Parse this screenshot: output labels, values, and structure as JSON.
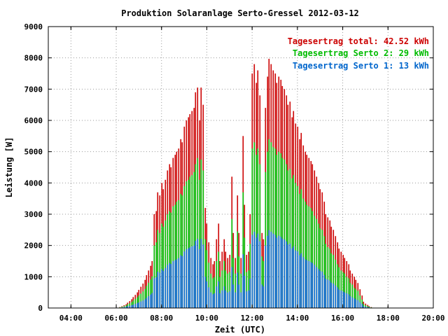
{
  "chart_data": {
    "type": "bar",
    "title": "Produktion Solaranlage Serto-Gressel 2012-03-12",
    "xlabel": "Zeit (UTC)",
    "ylabel": "Leistung [W]",
    "ylim": [
      0,
      9000
    ],
    "xlim": [
      "03:00",
      "20:00"
    ],
    "grid": true,
    "legend_position": "top-right",
    "x_ticks": [
      "04:00",
      "06:00",
      "08:00",
      "10:00",
      "12:00",
      "14:00",
      "16:00",
      "18:00",
      "20:00"
    ],
    "y_ticks": [
      "0",
      "1000",
      "2000",
      "3000",
      "4000",
      "5000",
      "6000",
      "7000",
      "8000",
      "9000"
    ],
    "interval_minutes": 5,
    "x": [
      "06:10",
      "06:15",
      "06:20",
      "06:25",
      "06:30",
      "06:35",
      "06:40",
      "06:45",
      "06:50",
      "06:55",
      "07:00",
      "07:05",
      "07:10",
      "07:15",
      "07:20",
      "07:25",
      "07:30",
      "07:35",
      "07:40",
      "07:45",
      "07:50",
      "07:55",
      "08:00",
      "08:05",
      "08:10",
      "08:15",
      "08:20",
      "08:25",
      "08:30",
      "08:35",
      "08:40",
      "08:45",
      "08:50",
      "08:55",
      "09:00",
      "09:05",
      "09:10",
      "09:15",
      "09:20",
      "09:25",
      "09:30",
      "09:35",
      "09:40",
      "09:45",
      "09:50",
      "09:55",
      "10:00",
      "10:05",
      "10:10",
      "10:15",
      "10:20",
      "10:25",
      "10:30",
      "10:35",
      "10:40",
      "10:45",
      "10:50",
      "10:55",
      "11:00",
      "11:05",
      "11:10",
      "11:15",
      "11:20",
      "11:25",
      "11:30",
      "11:35",
      "11:40",
      "11:45",
      "11:50",
      "11:55",
      "12:00",
      "12:05",
      "12:10",
      "12:15",
      "12:20",
      "12:25",
      "12:30",
      "12:35",
      "12:40",
      "12:45",
      "12:50",
      "12:55",
      "13:00",
      "13:05",
      "13:10",
      "13:15",
      "13:20",
      "13:25",
      "13:30",
      "13:35",
      "13:40",
      "13:45",
      "13:50",
      "13:55",
      "14:00",
      "14:05",
      "14:10",
      "14:15",
      "14:20",
      "14:25",
      "14:30",
      "14:35",
      "14:40",
      "14:45",
      "14:50",
      "14:55",
      "15:00",
      "15:05",
      "15:10",
      "15:15",
      "15:20",
      "15:25",
      "15:30",
      "15:35",
      "15:40",
      "15:45",
      "15:50",
      "15:55",
      "16:00",
      "16:05",
      "16:10",
      "16:15",
      "16:20",
      "16:25",
      "16:30",
      "16:35",
      "16:40",
      "16:45",
      "16:50",
      "16:55",
      "17:00",
      "17:05",
      "17:10",
      "17:15"
    ],
    "series": [
      {
        "name": "Tagesertrag total: 42.52 kWh",
        "color": "#cc0000",
        "values": [
          30,
          60,
          90,
          120,
          170,
          220,
          280,
          350,
          420,
          500,
          580,
          680,
          780,
          900,
          1050,
          1200,
          1350,
          1500,
          3000,
          3100,
          3700,
          3600,
          4000,
          3800,
          4100,
          4400,
          4600,
          4500,
          4800,
          4900,
          5000,
          5100,
          5400,
          5300,
          5800,
          6000,
          6100,
          6200,
          6300,
          6400,
          6900,
          7050,
          6000,
          7050,
          6500,
          3200,
          2700,
          2100,
          1600,
          1400,
          1500,
          2200,
          2700,
          1500,
          1800,
          2200,
          1800,
          1600,
          1700,
          4200,
          2400,
          1600,
          3600,
          2400,
          1600,
          5500,
          3300,
          1700,
          1800,
          3000,
          7500,
          7800,
          7200,
          7600,
          6800,
          2400,
          2200,
          6400,
          7400,
          7970,
          7800,
          7600,
          7500,
          7200,
          7400,
          7300,
          7100,
          7000,
          6800,
          6500,
          6600,
          6100,
          6300,
          5900,
          5800,
          5400,
          5600,
          5200,
          5000,
          4900,
          4800,
          4700,
          4600,
          4400,
          4200,
          4000,
          3800,
          3700,
          3400,
          3000,
          2900,
          2800,
          2600,
          2500,
          2300,
          2100,
          1900,
          1800,
          1700,
          1600,
          1500,
          1400,
          1200,
          1100,
          1000,
          900,
          800,
          600,
          400,
          200,
          140,
          100,
          60,
          30
        ]
      },
      {
        "name": "Tagesertrag Serto 2: 29 kWh",
        "color": "#00bb00",
        "values": [
          20,
          40,
          60,
          80,
          120,
          150,
          190,
          240,
          290,
          340,
          400,
          460,
          530,
          610,
          710,
          810,
          910,
          1010,
          2000,
          2100,
          2500,
          2400,
          2700,
          2600,
          2800,
          3000,
          3100,
          3050,
          3250,
          3300,
          3400,
          3450,
          3650,
          3600,
          3900,
          4050,
          4100,
          4200,
          4250,
          4350,
          4600,
          4800,
          4100,
          4750,
          4400,
          2200,
          1850,
          1450,
          1100,
          950,
          1000,
          1500,
          1800,
          1000,
          1200,
          1500,
          1200,
          1100,
          1150,
          2850,
          1600,
          1100,
          2450,
          1650,
          1100,
          3700,
          2250,
          1150,
          1200,
          2050,
          5100,
          5300,
          4900,
          5100,
          4600,
          1650,
          1500,
          4350,
          5000,
          5400,
          5300,
          5150,
          5100,
          4900,
          5000,
          4950,
          4800,
          4750,
          4600,
          4400,
          4450,
          4150,
          4250,
          4000,
          3900,
          3650,
          3800,
          3500,
          3400,
          3300,
          3250,
          3200,
          3100,
          2950,
          2850,
          2700,
          2550,
          2500,
          2300,
          2050,
          1950,
          1900,
          1750,
          1700,
          1550,
          1400,
          1300,
          1200,
          1150,
          1100,
          1000,
          950,
          800,
          750,
          650,
          600,
          550,
          400,
          270,
          130,
          90,
          60,
          40,
          20
        ]
      },
      {
        "name": "Tagesertrag Serto 1: 13 kWh",
        "color": "#0066cc",
        "values": [
          10,
          20,
          30,
          40,
          60,
          70,
          90,
          110,
          130,
          160,
          180,
          210,
          240,
          280,
          330,
          380,
          430,
          480,
          950,
          980,
          1160,
          1130,
          1250,
          1190,
          1280,
          1380,
          1440,
          1410,
          1500,
          1530,
          1560,
          1600,
          1690,
          1660,
          1810,
          1880,
          1910,
          1940,
          1970,
          2000,
          2150,
          2210,
          1880,
          2210,
          2030,
          1000,
          850,
          660,
          500,
          440,
          470,
          690,
          850,
          470,
          560,
          690,
          560,
          500,
          530,
          1310,
          750,
          500,
          1130,
          750,
          500,
          1720,
          1030,
          530,
          560,
          940,
          2340,
          2440,
          2250,
          2380,
          2130,
          750,
          690,
          2000,
          2310,
          2490,
          2440,
          2380,
          2340,
          2250,
          2310,
          2280,
          2220,
          2190,
          2130,
          2030,
          2060,
          1910,
          1970,
          1840,
          1810,
          1690,
          1750,
          1630,
          1560,
          1530,
          1500,
          1470,
          1440,
          1380,
          1310,
          1250,
          1190,
          1160,
          1060,
          940,
          910,
          880,
          810,
          780,
          720,
          660,
          590,
          560,
          530,
          500,
          470,
          440,
          380,
          340,
          310,
          280,
          250,
          190,
          130,
          60,
          40,
          30,
          20,
          10
        ]
      }
    ]
  }
}
